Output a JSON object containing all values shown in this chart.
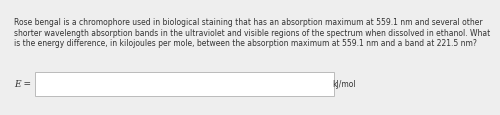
{
  "paragraph_line1": "Rose bengal is a chromophore used in biological staining that has an absorption maximum at 559.1 nm and several other",
  "paragraph_line2": "shorter wavelength absorption bands in the ultraviolet and visible regions of the spectrum when dissolved in ethanol. What",
  "paragraph_line3": "is the energy difference, in kilojoules per mole, between the absorption maximum at 559.1 nm and a band at 221.5 nm?",
  "label": "E =",
  "unit": "kJ/mol",
  "bg_color": "#eeeeee",
  "box_bg": "#ffffff",
  "box_edge_color": "#bbbbbb",
  "text_color": "#333333",
  "font_size": 5.5,
  "label_font_size": 6.5
}
